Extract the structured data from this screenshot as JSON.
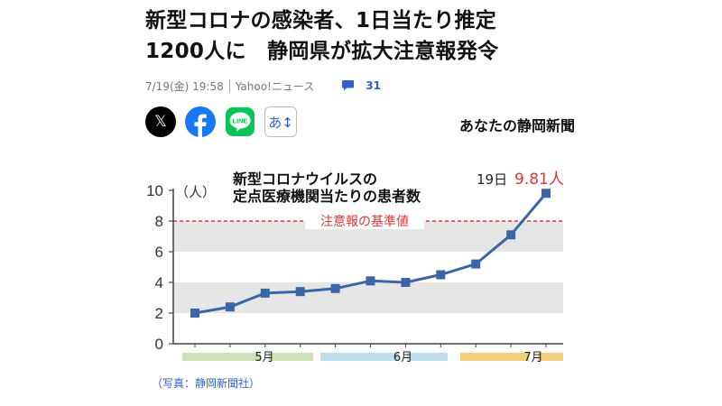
{
  "article": {
    "headline_line1": "新型コロナの感染者、1日当たり推定",
    "headline_line2": "1200人に　静岡県が拡大注意報発令",
    "date": "7/19(金) 19:58",
    "source": "Yahoo!ニュース",
    "comment_count": "31",
    "publisher": "あなたの静岡新聞",
    "caption": "（写真：静岡新聞社）"
  },
  "share": {
    "x_label": "𝕏",
    "line_label": "LINE",
    "font_label": "あ↕"
  },
  "colors": {
    "line": "#3a66a8",
    "threshold": "#d8393b",
    "band": "#e6e6e6",
    "may": "#cbe3b7",
    "june": "#bcdfe9",
    "july": "#f2cf7f"
  },
  "chart_data": {
    "type": "line",
    "title_line1": "新型コロナウイルスの",
    "title_line2": "定点医療機関当たりの患者数",
    "ylabel": "（人）",
    "ylim": [
      0,
      10
    ],
    "yticks": [
      "0",
      "2",
      "4",
      "6",
      "8",
      "10"
    ],
    "values": [
      2.0,
      2.4,
      3.3,
      3.4,
      3.6,
      4.1,
      4.0,
      4.5,
      5.2,
      7.1,
      9.81
    ],
    "threshold": 8,
    "threshold_label": "注意報の基準値",
    "last_point_day": "19日",
    "last_point_value": "9.81人",
    "months": [
      "5月",
      "6月",
      "7月"
    ],
    "grid_bands": [
      [
        2,
        4
      ],
      [
        6,
        8
      ]
    ]
  }
}
